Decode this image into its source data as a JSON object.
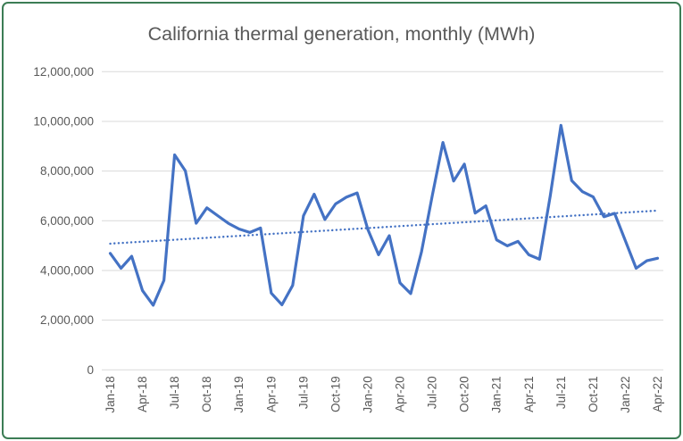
{
  "title": "California thermal generation, monthly (MWh)",
  "colors": {
    "series_line": "#4472C4",
    "trendline": "#4472C4",
    "gridline": "#D9D9D9",
    "axis_text": "#595959",
    "title_text": "#595959",
    "frame_border": "#3C7D55",
    "background": "#FFFFFF"
  },
  "chart_data": {
    "type": "line",
    "title": "California thermal generation, monthly (MWh)",
    "xlabel": "",
    "ylabel": "",
    "ylim": [
      0,
      12000000
    ],
    "y_tick_interval": 2000000,
    "grid": "horizontal",
    "legend": "none",
    "x": [
      "Jan-18",
      "Feb-18",
      "Mar-18",
      "Apr-18",
      "May-18",
      "Jun-18",
      "Jul-18",
      "Aug-18",
      "Sep-18",
      "Oct-18",
      "Nov-18",
      "Dec-18",
      "Jan-19",
      "Feb-19",
      "Mar-19",
      "Apr-19",
      "May-19",
      "Jun-19",
      "Jul-19",
      "Aug-19",
      "Sep-19",
      "Oct-19",
      "Nov-19",
      "Dec-19",
      "Jan-20",
      "Feb-20",
      "Mar-20",
      "Apr-20",
      "May-20",
      "Jun-20",
      "Jul-20",
      "Aug-20",
      "Sep-20",
      "Oct-20",
      "Nov-20",
      "Dec-20",
      "Jan-21",
      "Feb-21",
      "Mar-21",
      "Apr-21",
      "May-21",
      "Jun-21",
      "Jul-21",
      "Aug-21",
      "Sep-21",
      "Oct-21",
      "Nov-21",
      "Dec-21",
      "Jan-22",
      "Feb-22",
      "Mar-22",
      "Apr-22"
    ],
    "series": [
      {
        "name": "California thermal generation (MWh)",
        "values": [
          4690000,
          4090000,
          4570000,
          3190000,
          2600000,
          3600000,
          8650000,
          8010000,
          5900000,
          6520000,
          6210000,
          5900000,
          5670000,
          5530000,
          5710000,
          3090000,
          2620000,
          3400000,
          6200000,
          7070000,
          6050000,
          6680000,
          6950000,
          7120000,
          5650000,
          4630000,
          5400000,
          3500000,
          3070000,
          4750000,
          7000000,
          9150000,
          7600000,
          8280000,
          6310000,
          6600000,
          5230000,
          4990000,
          5170000,
          4630000,
          4450000,
          7000000,
          9840000,
          7620000,
          7170000,
          6960000,
          6160000,
          6300000,
          5200000,
          4090000,
          4390000,
          4490000
        ]
      }
    ],
    "trendline": {
      "type": "linear",
      "style": "dotted",
      "start_value": 5080000,
      "end_value": 6410000
    },
    "x_tick_labels": [
      "Jan-18",
      "Apr-18",
      "Jul-18",
      "Oct-18",
      "Jan-19",
      "Apr-19",
      "Jul-19",
      "Oct-19",
      "Jan-20",
      "Apr-20",
      "Jul-20",
      "Oct-20",
      "Jan-21",
      "Apr-21",
      "Jul-21",
      "Oct-21",
      "Jan-22",
      "Apr-22"
    ],
    "x_tick_every_n_months": 3,
    "y_tick_labels": [
      "0",
      "2,000,000",
      "4,000,000",
      "6,000,000",
      "8,000,000",
      "10,000,000",
      "12,000,000"
    ],
    "y_tick_values": [
      0,
      2000000,
      4000000,
      6000000,
      8000000,
      10000000,
      12000000
    ]
  }
}
